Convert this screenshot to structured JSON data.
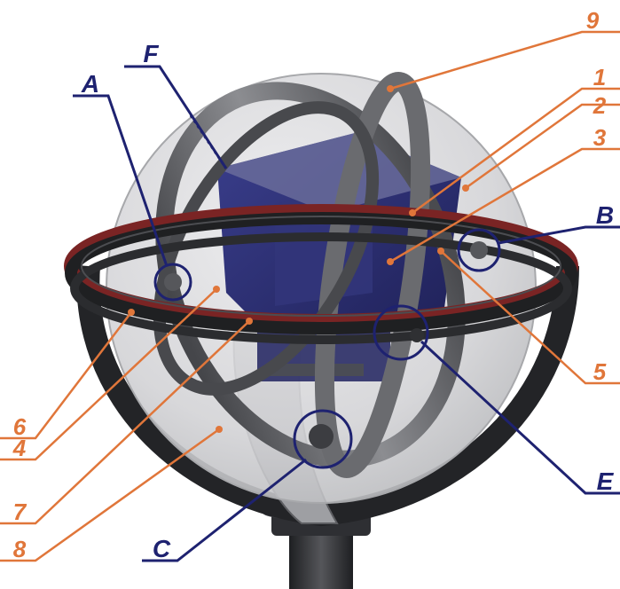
{
  "colors": {
    "orange_label": "#E0763A",
    "navy_label": "#1E2270",
    "dome": "#D3D3D6",
    "ring_dark": "#1E1E20",
    "ring_red": "#7A2424",
    "gimbal_steel": "#5B5C60",
    "payload_blue": "#2C2F72",
    "pedestal": "#2A2B2E"
  },
  "labels": {
    "numbered": [
      "9",
      "1",
      "2",
      "3",
      "5",
      "6",
      "4",
      "7",
      "8"
    ],
    "lettered": [
      "F",
      "A",
      "B",
      "E",
      "C"
    ]
  }
}
